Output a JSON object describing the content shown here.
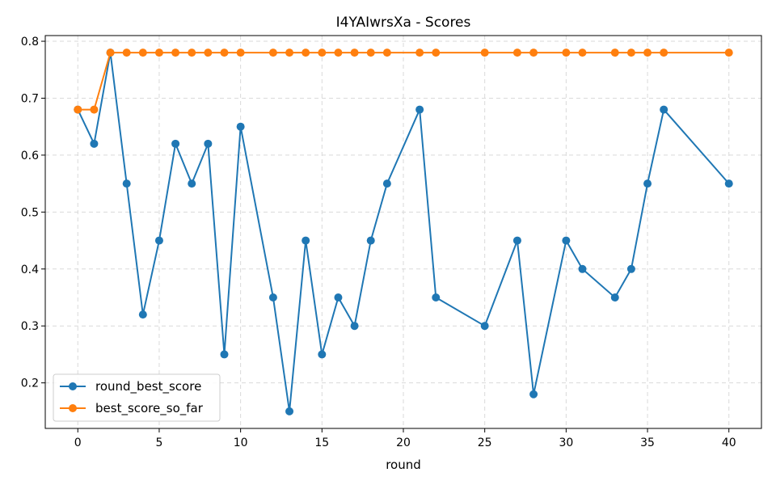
{
  "chart_data": {
    "type": "line",
    "title": "I4YAIwrsXa - Scores",
    "xlabel": "round",
    "ylabel": "",
    "xlim": [
      -2,
      42
    ],
    "ylim": [
      0.12,
      0.81
    ],
    "xticks": [
      0,
      5,
      10,
      15,
      20,
      25,
      30,
      35,
      40
    ],
    "yticks": [
      0.2,
      0.3,
      0.4,
      0.5,
      0.6,
      0.7,
      0.8
    ],
    "grid": true,
    "legend_position": "bottom-left",
    "x": [
      0,
      1,
      2,
      3,
      4,
      5,
      6,
      7,
      8,
      9,
      10,
      12,
      13,
      14,
      15,
      16,
      17,
      18,
      19,
      21,
      22,
      25,
      27,
      28,
      30,
      31,
      33,
      34,
      35,
      36,
      40
    ],
    "series": [
      {
        "name": "round_best_score",
        "color": "#1f77b4",
        "values": [
          0.68,
          0.62,
          0.78,
          0.55,
          0.32,
          0.45,
          0.62,
          0.55,
          0.62,
          0.25,
          0.65,
          0.35,
          0.15,
          0.45,
          0.25,
          0.35,
          0.3,
          0.45,
          0.55,
          0.68,
          0.35,
          0.3,
          0.45,
          0.18,
          0.45,
          0.4,
          0.35,
          0.4,
          0.55,
          0.68,
          0.55
        ]
      },
      {
        "name": "best_score_so_far",
        "color": "#ff7f0e",
        "values": [
          0.68,
          0.68,
          0.78,
          0.78,
          0.78,
          0.78,
          0.78,
          0.78,
          0.78,
          0.78,
          0.78,
          0.78,
          0.78,
          0.78,
          0.78,
          0.78,
          0.78,
          0.78,
          0.78,
          0.78,
          0.78,
          0.78,
          0.78,
          0.78,
          0.78,
          0.78,
          0.78,
          0.78,
          0.78,
          0.78,
          0.78
        ]
      }
    ]
  }
}
